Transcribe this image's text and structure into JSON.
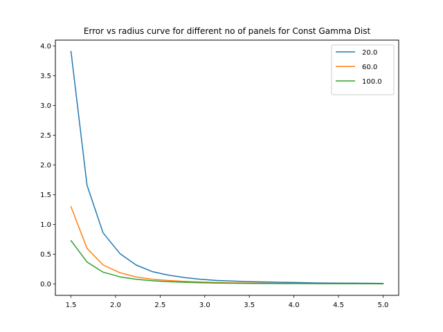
{
  "chart_data": {
    "type": "line",
    "title": "Error vs radius curve for different no of panels for Const Gamma Dist",
    "xlabel": "",
    "ylabel": "",
    "xlim": [
      1.325,
      5.175
    ],
    "ylim": [
      -0.19,
      4.1
    ],
    "grid": false,
    "legend_position": "top-right",
    "x_ticks": [
      "1.5",
      "2.0",
      "2.5",
      "3.0",
      "3.5",
      "4.0",
      "4.5",
      "5.0"
    ],
    "y_ticks": [
      "0.0",
      "0.5",
      "1.0",
      "1.5",
      "2.0",
      "2.5",
      "3.0",
      "3.5",
      "4.0"
    ],
    "x": [
      1.5,
      1.68,
      1.86,
      2.05,
      2.23,
      2.41,
      2.59,
      2.77,
      2.95,
      3.14,
      3.32,
      3.5,
      3.68,
      3.86,
      4.05,
      4.23,
      4.41,
      4.59,
      4.77,
      5.0
    ],
    "series": [
      {
        "name": "20.0",
        "color": "#1f77b4",
        "values": [
          3.91,
          1.66,
          0.86,
          0.51,
          0.32,
          0.21,
          0.15,
          0.11,
          0.08,
          0.06,
          0.05,
          0.04,
          0.035,
          0.03,
          0.025,
          0.02,
          0.017,
          0.015,
          0.013,
          0.01
        ]
      },
      {
        "name": "60.0",
        "color": "#ff7f0e",
        "values": [
          1.3,
          0.6,
          0.32,
          0.19,
          0.12,
          0.08,
          0.06,
          0.045,
          0.035,
          0.027,
          0.02,
          0.017,
          0.014,
          0.012,
          0.01,
          0.009,
          0.008,
          0.007,
          0.006,
          0.005
        ]
      },
      {
        "name": "100.0",
        "color": "#2ca02c",
        "values": [
          0.73,
          0.37,
          0.2,
          0.12,
          0.08,
          0.055,
          0.04,
          0.03,
          0.022,
          0.017,
          0.014,
          0.011,
          0.009,
          0.008,
          0.007,
          0.006,
          0.005,
          0.004,
          0.004,
          0.003
        ]
      }
    ]
  }
}
